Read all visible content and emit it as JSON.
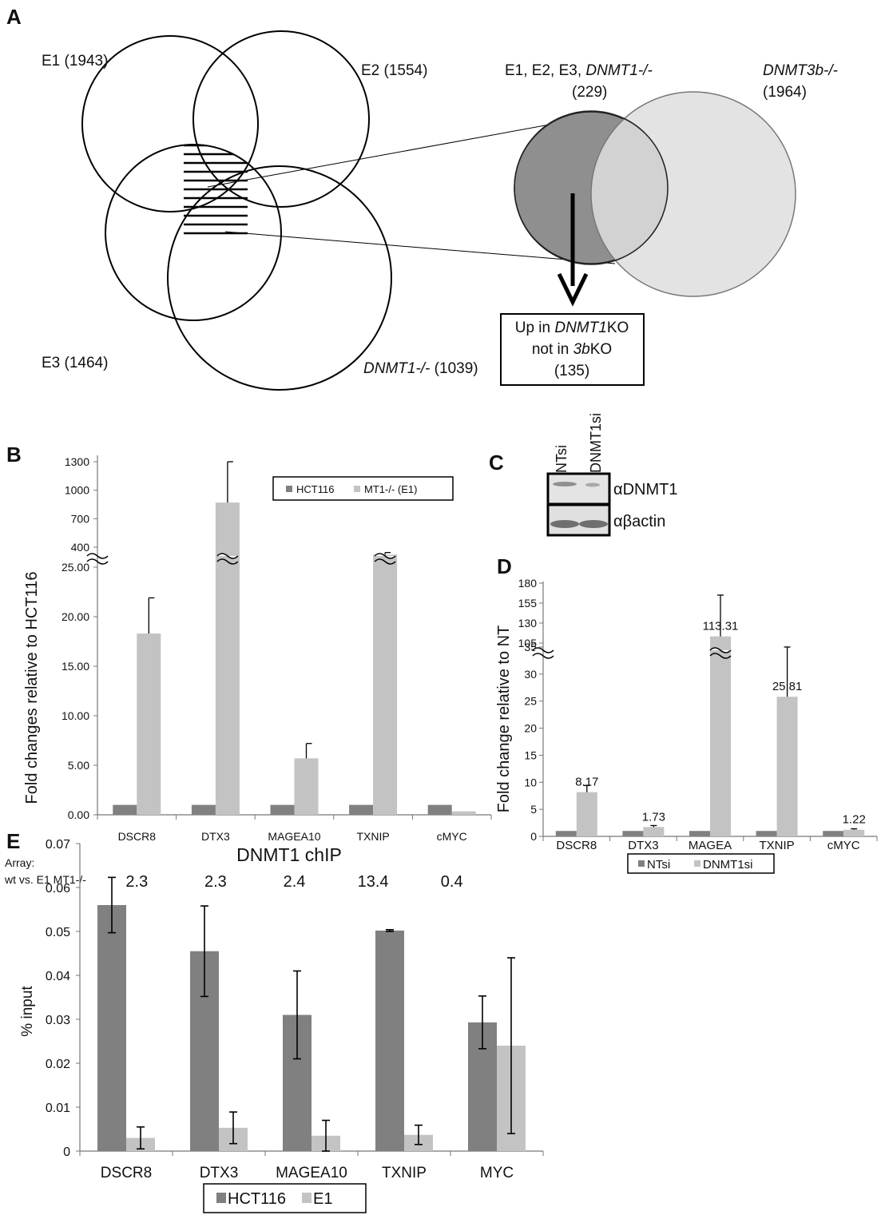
{
  "colors": {
    "dark": "#808080",
    "light": "#c3c3c3",
    "venn_dark": "#8f8f8f",
    "venn_light": "#dedede"
  },
  "panels": {
    "a": "A",
    "b": "B",
    "c": "C",
    "d": "D",
    "e": "E"
  },
  "venn": {
    "e1": "E1 (1943)",
    "e2": "E2 (1554)",
    "e3": "E3 (1464)",
    "dnmt1": {
      "italic": "DNMT1-/-",
      "count": " (1039)"
    },
    "overlap": {
      "line1": "E1, E2, E3, ",
      "line1_italic": "DNMT1-/-",
      "line2": "(229)"
    },
    "dnmt3b": {
      "italic": "DNMT3b-/-",
      "count": "(1964)"
    },
    "box": {
      "l1a": "Up in ",
      "l1b": "DNMT1",
      "l1c": "KO",
      "l2a": "not in ",
      "l2b": "3b",
      "l2c": "KO",
      "l3": "(135)"
    }
  },
  "western": {
    "lanes": [
      "NTsi",
      "DNMT1si"
    ],
    "bands": [
      "αDNMT1",
      "αβactin"
    ]
  },
  "chart_data": [
    {
      "panel": "B",
      "type": "bar",
      "ylabel": "Fold changes relative to HCT116",
      "categories": [
        "DSCR8",
        "DTX3",
        "MAGEA10",
        "TXNIP",
        "cMYC"
      ],
      "series": [
        {
          "name": "HCT116",
          "values": [
            1,
            1,
            1,
            1,
            1
          ],
          "errors": [
            0,
            0,
            0,
            0,
            0
          ]
        },
        {
          "name": "MT1-/- (E1)",
          "values": [
            18.3,
            870,
            5.7,
            260,
            0.35
          ],
          "errors": [
            3.6,
            430,
            1.5,
            40,
            0
          ]
        }
      ],
      "lower_ticks": [
        "0.00",
        "5.00",
        "10.00",
        "15.00",
        "20.00",
        "25.00"
      ],
      "upper_ticks": [
        "400",
        "700",
        "1000",
        "1300"
      ],
      "axis_break": true,
      "array": {
        "label1": "Array:",
        "label2": "wt vs. E1 MT1-/-",
        "values": [
          "2.3",
          "2.3",
          "2.4",
          "13.4",
          "0.4"
        ]
      }
    },
    {
      "panel": "D",
      "type": "bar",
      "ylabel": "Fold change relative to NT",
      "categories": [
        "DSCR8",
        "DTX3",
        "MAGEA",
        "TXNIP",
        "cMYC"
      ],
      "series": [
        {
          "name": "NTsi",
          "values": [
            1,
            1,
            1,
            1,
            1
          ]
        },
        {
          "name": "DNMT1si",
          "values": [
            8.17,
            1.73,
            113.31,
            25.81,
            1.22
          ]
        }
      ],
      "data_labels": [
        "8.17",
        "1.73",
        "113.31",
        "25.81",
        "1.22"
      ],
      "lower_ticks": [
        "0",
        "5",
        "10",
        "15",
        "20",
        "25",
        "30",
        "35"
      ],
      "upper_ticks": [
        "105",
        "130",
        "155",
        "180"
      ],
      "axis_break": true
    },
    {
      "panel": "E",
      "type": "bar",
      "title": "DNMT1 chIP",
      "ylabel": "% input",
      "categories": [
        "DSCR8",
        "DTX3",
        "MAGEA10",
        "TXNIP",
        "MYC"
      ],
      "series": [
        {
          "name": "HCT116",
          "values": [
            0.056,
            0.0455,
            0.031,
            0.0502,
            0.0293
          ],
          "errors": [
            0.0063,
            0.0103,
            0.01,
            0.0002,
            0.006
          ]
        },
        {
          "name": "E1",
          "values": [
            0.003,
            0.0053,
            0.0035,
            0.0037,
            0.024
          ],
          "errors": [
            0.0025,
            0.0036,
            0.0035,
            0.0022,
            0.02
          ]
        }
      ],
      "yticks": [
        "0",
        "0.01",
        "0.02",
        "0.03",
        "0.04",
        "0.05",
        "0.06",
        "0.07"
      ],
      "ylim": [
        0,
        0.07
      ]
    }
  ]
}
